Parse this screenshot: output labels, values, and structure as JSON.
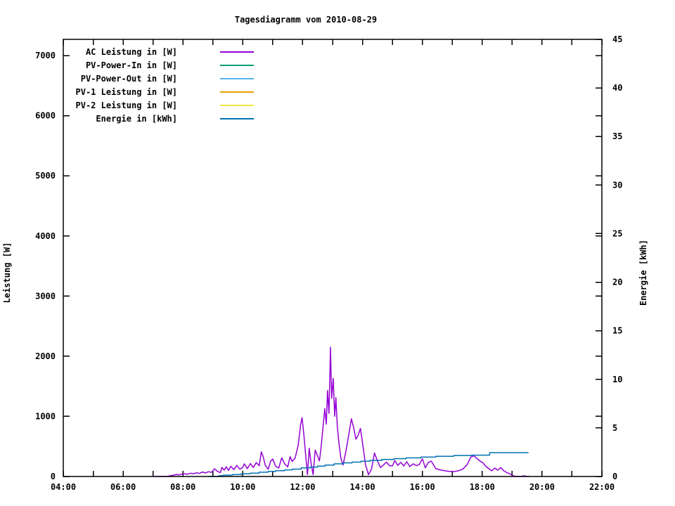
{
  "page": {
    "background": "#ffffff",
    "text_color": "#000000"
  },
  "chart_data": {
    "type": "line",
    "title": "Tagesdiagramm vom 2010-08-29",
    "grid": false,
    "legend_position": "top-left-inside",
    "x_axis": {
      "kind": "time-of-day",
      "range_hours": [
        4,
        22
      ],
      "tick_hours": [
        4,
        5,
        6,
        7,
        8,
        9,
        10,
        11,
        12,
        13,
        14,
        15,
        16,
        17,
        18,
        19,
        20,
        21,
        22
      ],
      "labeled_ticks": [
        {
          "hour": 4,
          "label": "04:00"
        },
        {
          "hour": 6,
          "label": "06:00"
        },
        {
          "hour": 8,
          "label": "08:00"
        },
        {
          "hour": 10,
          "label": "10:00"
        },
        {
          "hour": 12,
          "label": "12:00"
        },
        {
          "hour": 14,
          "label": "14:00"
        },
        {
          "hour": 16,
          "label": "16:00"
        },
        {
          "hour": 18,
          "label": "18:00"
        },
        {
          "hour": 20,
          "label": "20:00"
        },
        {
          "hour": 22,
          "label": "22:00"
        }
      ]
    },
    "y_left": {
      "label": "Leistung [W]",
      "range": [
        0,
        7270
      ],
      "ticks": [
        0,
        1000,
        2000,
        3000,
        4000,
        5000,
        6000,
        7000
      ]
    },
    "y_right": {
      "label": "Energie [kWh]",
      "range": [
        0,
        45
      ],
      "ticks": [
        0,
        5,
        10,
        15,
        20,
        25,
        30,
        35,
        40,
        45
      ]
    },
    "series": [
      {
        "name": "AC Leistung in [W]",
        "color": "#9400D3",
        "axis": "left",
        "step": false,
        "points": [
          [
            7.05,
            0
          ],
          [
            7.2,
            0
          ],
          [
            7.35,
            0
          ],
          [
            7.5,
            5
          ],
          [
            7.6,
            15
          ],
          [
            7.7,
            22
          ],
          [
            7.78,
            35
          ],
          [
            7.85,
            25
          ],
          [
            7.95,
            38
          ],
          [
            8.05,
            45
          ],
          [
            8.15,
            38
          ],
          [
            8.25,
            55
          ],
          [
            8.35,
            45
          ],
          [
            8.45,
            62
          ],
          [
            8.55,
            50
          ],
          [
            8.65,
            75
          ],
          [
            8.75,
            60
          ],
          [
            8.85,
            80
          ],
          [
            8.95,
            68
          ],
          [
            9.0,
            95
          ],
          [
            9.05,
            130
          ],
          [
            9.15,
            85
          ],
          [
            9.25,
            65
          ],
          [
            9.3,
            150
          ],
          [
            9.38,
            108
          ],
          [
            9.45,
            160
          ],
          [
            9.52,
            100
          ],
          [
            9.6,
            170
          ],
          [
            9.7,
            115
          ],
          [
            9.8,
            185
          ],
          [
            9.9,
            122
          ],
          [
            10.0,
            150
          ],
          [
            10.05,
            210
          ],
          [
            10.15,
            130
          ],
          [
            10.25,
            215
          ],
          [
            10.35,
            150
          ],
          [
            10.45,
            230
          ],
          [
            10.55,
            180
          ],
          [
            10.62,
            410
          ],
          [
            10.68,
            330
          ],
          [
            10.75,
            185
          ],
          [
            10.85,
            120
          ],
          [
            10.93,
            255
          ],
          [
            11.0,
            290
          ],
          [
            11.1,
            170
          ],
          [
            11.2,
            140
          ],
          [
            11.3,
            310
          ],
          [
            11.4,
            210
          ],
          [
            11.5,
            160
          ],
          [
            11.58,
            330
          ],
          [
            11.65,
            250
          ],
          [
            11.75,
            310
          ],
          [
            11.85,
            520
          ],
          [
            11.93,
            860
          ],
          [
            11.98,
            980
          ],
          [
            12.04,
            700
          ],
          [
            12.1,
            360
          ],
          [
            12.16,
            30
          ],
          [
            12.22,
            470
          ],
          [
            12.28,
            220
          ],
          [
            12.35,
            30
          ],
          [
            12.42,
            440
          ],
          [
            12.5,
            340
          ],
          [
            12.56,
            260
          ],
          [
            12.62,
            500
          ],
          [
            12.7,
            920
          ],
          [
            12.74,
            1130
          ],
          [
            12.79,
            870
          ],
          [
            12.83,
            1430
          ],
          [
            12.88,
            1050
          ],
          [
            12.93,
            2150
          ],
          [
            12.97,
            1300
          ],
          [
            13.02,
            1630
          ],
          [
            13.07,
            1000
          ],
          [
            13.11,
            1310
          ],
          [
            13.16,
            820
          ],
          [
            13.22,
            520
          ],
          [
            13.28,
            300
          ],
          [
            13.35,
            190
          ],
          [
            13.45,
            430
          ],
          [
            13.55,
            720
          ],
          [
            13.63,
            960
          ],
          [
            13.7,
            820
          ],
          [
            13.78,
            620
          ],
          [
            13.85,
            680
          ],
          [
            13.93,
            800
          ],
          [
            14.0,
            560
          ],
          [
            14.1,
            200
          ],
          [
            14.2,
            30
          ],
          [
            14.3,
            120
          ],
          [
            14.4,
            390
          ],
          [
            14.5,
            260
          ],
          [
            14.6,
            150
          ],
          [
            14.7,
            190
          ],
          [
            14.8,
            240
          ],
          [
            14.9,
            180
          ],
          [
            15.0,
            175
          ],
          [
            15.08,
            265
          ],
          [
            15.18,
            185
          ],
          [
            15.28,
            235
          ],
          [
            15.38,
            175
          ],
          [
            15.48,
            245
          ],
          [
            15.58,
            165
          ],
          [
            15.7,
            210
          ],
          [
            15.8,
            180
          ],
          [
            15.9,
            200
          ],
          [
            16.0,
            295
          ],
          [
            16.1,
            145
          ],
          [
            16.2,
            235
          ],
          [
            16.3,
            255
          ],
          [
            16.45,
            130
          ],
          [
            16.6,
            110
          ],
          [
            16.75,
            95
          ],
          [
            16.9,
            85
          ],
          [
            17.05,
            80
          ],
          [
            17.2,
            95
          ],
          [
            17.35,
            120
          ],
          [
            17.5,
            200
          ],
          [
            17.62,
            320
          ],
          [
            17.72,
            345
          ],
          [
            17.82,
            300
          ],
          [
            17.92,
            260
          ],
          [
            18.02,
            230
          ],
          [
            18.12,
            170
          ],
          [
            18.22,
            130
          ],
          [
            18.32,
            95
          ],
          [
            18.42,
            140
          ],
          [
            18.52,
            105
          ],
          [
            18.62,
            150
          ],
          [
            18.72,
            95
          ],
          [
            18.82,
            65
          ],
          [
            18.92,
            45
          ],
          [
            19.02,
            15
          ],
          [
            19.12,
            0
          ],
          [
            19.3,
            0
          ],
          [
            19.4,
            12
          ],
          [
            19.5,
            0
          ],
          [
            19.58,
            0
          ]
        ]
      },
      {
        "name": "PV-Power-In in [W]",
        "color": "#009E73",
        "axis": "left",
        "step": false,
        "points": []
      },
      {
        "name": "PV-Power-Out in [W]",
        "color": "#56B4E9",
        "axis": "left",
        "step": false,
        "points": []
      },
      {
        "name": "PV-1 Leistung in [W]",
        "color": "#E69F00",
        "axis": "left",
        "step": false,
        "points": []
      },
      {
        "name": "PV-2 Leistung in [W]",
        "color": "#F0E442",
        "axis": "left",
        "step": false,
        "points": []
      },
      {
        "name": "Energie in [kWh]",
        "color": "#0072B2",
        "axis": "right",
        "step": true,
        "points": [
          [
            8.85,
            0
          ],
          [
            9.2,
            0.08
          ],
          [
            9.35,
            0.14
          ],
          [
            9.65,
            0.2
          ],
          [
            9.95,
            0.28
          ],
          [
            10.25,
            0.35
          ],
          [
            10.55,
            0.44
          ],
          [
            10.85,
            0.52
          ],
          [
            11.1,
            0.6
          ],
          [
            11.4,
            0.68
          ],
          [
            11.65,
            0.76
          ],
          [
            11.95,
            0.88
          ],
          [
            12.25,
            0.97
          ],
          [
            12.5,
            1.06
          ],
          [
            12.75,
            1.18
          ],
          [
            13.05,
            1.3
          ],
          [
            13.35,
            1.4
          ],
          [
            13.65,
            1.48
          ],
          [
            13.95,
            1.58
          ],
          [
            14.25,
            1.66
          ],
          [
            14.65,
            1.76
          ],
          [
            15.05,
            1.84
          ],
          [
            15.45,
            1.92
          ],
          [
            15.95,
            2.0
          ],
          [
            16.45,
            2.08
          ],
          [
            17.05,
            2.15
          ],
          [
            17.65,
            2.2
          ],
          [
            18.25,
            2.45
          ],
          [
            19.55,
            2.45
          ]
        ]
      }
    ]
  }
}
